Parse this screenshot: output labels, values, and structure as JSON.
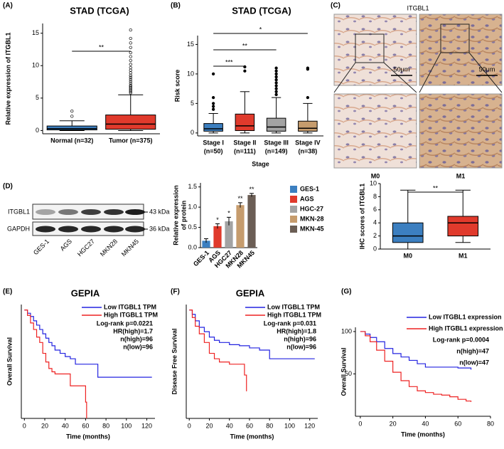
{
  "chart_data": [
    {
      "type": "box",
      "label": "(A)",
      "title": "STAD (TCGA)",
      "ylabel": "Relative expression of ITGBL1",
      "categories": [
        "Normal (n=32)",
        "Tumor (n=375)"
      ],
      "colors": [
        "#3c7fc0",
        "#e03a2c"
      ],
      "whisker_low": [
        0,
        0
      ],
      "q1": [
        0.1,
        0.2
      ],
      "median": [
        0.3,
        1.0
      ],
      "q3": [
        0.7,
        2.4
      ],
      "whisker_high": [
        1.5,
        5.5
      ],
      "outliers": [
        [
          2.2,
          3.0
        ],
        [
          5.8,
          6.0,
          6.2,
          6.4,
          6.6,
          6.8,
          7.0,
          7.3,
          7.6,
          7.9,
          8.2,
          8.5,
          8.9,
          9.3,
          9.7,
          10.2,
          10.8,
          11.4,
          12.0,
          12.8,
          13.5,
          14.2,
          15.5
        ]
      ],
      "significance": [
        {
          "pair": [
            0,
            1
          ],
          "text": "**"
        }
      ],
      "ylim": [
        -0.5,
        16.5
      ],
      "yticks": [
        0,
        5,
        10,
        15
      ]
    },
    {
      "type": "box",
      "label": "(B)",
      "title": "STAD (TCGA)",
      "ylabel": "Risk score",
      "xlabel": "Stage",
      "categories": [
        "Stage I",
        "Stage II",
        "Stage III",
        "Stage IV"
      ],
      "sublabels": [
        "(n=50)",
        "(n=111)",
        "(n=149)",
        "(n=38)"
      ],
      "colors": [
        "#3c7fc0",
        "#e03a2c",
        "#a3a3a3",
        "#c69c6d"
      ],
      "whisker_low": [
        0,
        0,
        0,
        0
      ],
      "q1": [
        0.3,
        0.4,
        0.3,
        0.3
      ],
      "median": [
        0.7,
        1.2,
        1.0,
        0.8
      ],
      "q3": [
        1.6,
        3.2,
        2.5,
        2.0
      ],
      "whisker_high": [
        3.3,
        7.0,
        6.0,
        5.0
      ],
      "outliers": [
        [
          4.0,
          4.5,
          5.0,
          6.0,
          10.0
        ],
        [
          10.5,
          11.2
        ],
        [
          6.5,
          7.0,
          7.5,
          8.0,
          8.5,
          9.0,
          9.5,
          10.0,
          10.5,
          11.0
        ],
        [
          6.0,
          10.8,
          11.0
        ]
      ],
      "significance": [
        {
          "pair": [
            0,
            3
          ],
          "text": "*"
        },
        {
          "pair": [
            0,
            2
          ],
          "text": "**"
        },
        {
          "pair": [
            0,
            1
          ],
          "text": "***"
        }
      ],
      "ylim": [
        -0.5,
        16.5
      ],
      "yticks": [
        0,
        5,
        10,
        15
      ]
    },
    {
      "type": "bar",
      "ylabel": [
        "Relative expression",
        "of protein"
      ],
      "categories": [
        "GES-1",
        "AGS",
        "HGC27",
        "MKN28",
        "MKN45"
      ],
      "legend": [
        "GES-1",
        "AGS",
        "HGC-27",
        "MKN-28",
        "MKN-45"
      ],
      "colors": [
        "#3c7fc0",
        "#e03a2c",
        "#a3a3a3",
        "#c69c6d",
        "#6b5e55"
      ],
      "values": [
        0.17,
        0.53,
        0.65,
        1.05,
        1.3
      ],
      "errors": [
        0.05,
        0.06,
        0.1,
        0.06,
        0.04
      ],
      "annotations": [
        null,
        "*",
        "*",
        "**",
        "**"
      ],
      "ylim": [
        0,
        1.6
      ],
      "yticks": [
        {
          "value": 0,
          "label": "0.0"
        },
        0.5,
        {
          "value": 1,
          "label": "1.0"
        },
        1.5
      ]
    },
    {
      "type": "box",
      "ylabel": "IHC scores of ITGBL1",
      "categories": [
        "M0",
        "M1"
      ],
      "colors": [
        "#3c7fc0",
        "#e03a2c"
      ],
      "whisker_low": [
        0,
        1
      ],
      "q1": [
        1,
        2
      ],
      "median": [
        2,
        4
      ],
      "q3": [
        4,
        5
      ],
      "whisker_high": [
        9,
        9
      ],
      "outliers": [
        [],
        []
      ],
      "significance": [
        {
          "pair": [
            0,
            1
          ],
          "text": "**"
        }
      ],
      "ylim": [
        0,
        10
      ],
      "yticks": [
        0,
        2,
        4,
        6,
        8,
        10
      ]
    },
    {
      "type": "line",
      "label": "(E)",
      "title": "GEPIA",
      "ylabel": "Overall Survival",
      "xlabel": "Time (months)",
      "series": [
        {
          "name": "Low ITGBL1 TPM",
          "color": "#2323e0",
          "x": [
            0,
            3,
            6,
            9,
            12,
            15,
            18,
            21,
            24,
            27,
            30,
            35,
            40,
            45,
            50,
            55,
            60,
            70,
            72,
            125
          ],
          "values": [
            1,
            0.97,
            0.94,
            0.9,
            0.86,
            0.82,
            0.78,
            0.74,
            0.7,
            0.67,
            0.63,
            0.6,
            0.57,
            0.55,
            0.5,
            0.5,
            0.5,
            0.5,
            0.38,
            0.38
          ]
        },
        {
          "name": "High ITGBL1 TPM",
          "color": "#ee2222",
          "x": [
            0,
            3,
            6,
            9,
            12,
            15,
            18,
            21,
            24,
            27,
            30,
            40,
            45,
            50,
            58,
            60,
            61
          ],
          "values": [
            1,
            0.95,
            0.88,
            0.82,
            0.75,
            0.7,
            0.6,
            0.52,
            0.46,
            0.43,
            0.41,
            0.41,
            0.3,
            0.3,
            0.3,
            0.15,
            0
          ]
        }
      ],
      "annotations": [
        "Log-rank p=0.0221",
        "HR(high)=1.7",
        "n(high)=96",
        "n(low)=96"
      ],
      "xlim": [
        -3,
        128
      ],
      "xticks": [
        0,
        20,
        40,
        60,
        80,
        100,
        120
      ],
      "ylim": [
        0,
        1.05
      ]
    },
    {
      "type": "line",
      "label": "(F)",
      "title": "GEPIA",
      "ylabel": "Disease Free Survival",
      "xlabel": "Time (months)",
      "series": [
        {
          "name": "Low ITGBL1 TPM",
          "color": "#2323e0",
          "x": [
            0,
            3,
            6,
            10,
            15,
            20,
            25,
            30,
            40,
            50,
            60,
            70,
            80,
            100,
            125
          ],
          "values": [
            1,
            0.96,
            0.9,
            0.84,
            0.8,
            0.75,
            0.72,
            0.7,
            0.68,
            0.67,
            0.65,
            0.63,
            0.55,
            0.55,
            0.55
          ]
        },
        {
          "name": "High ITGBL1 TPM",
          "color": "#ee2222",
          "x": [
            0,
            3,
            6,
            10,
            15,
            20,
            25,
            30,
            40,
            50,
            55,
            57
          ],
          "values": [
            1,
            0.93,
            0.85,
            0.78,
            0.7,
            0.6,
            0.55,
            0.52,
            0.5,
            0.5,
            0.4,
            0.25
          ]
        }
      ],
      "annotations": [
        "Log-rank p=0.031",
        "HR(high)=1.8",
        "n(high)=96",
        "n(low)=96"
      ],
      "xlim": [
        -3,
        128
      ],
      "xticks": [
        0,
        20,
        40,
        60,
        80,
        100,
        120
      ],
      "ylim": [
        0,
        1.05
      ]
    },
    {
      "type": "line",
      "label": "(G)",
      "ylabel": "Overall Survival",
      "xlabel": "Time (months)",
      "series": [
        {
          "name": "Low ITGBL1 expression",
          "color": "#2323e0",
          "x": [
            0,
            3,
            6,
            10,
            15,
            20,
            25,
            30,
            35,
            40,
            50,
            60,
            68
          ],
          "values": [
            100,
            97,
            93,
            88,
            80,
            74,
            70,
            66,
            62,
            58,
            58,
            57,
            55
          ]
        },
        {
          "name": "High ITGBL1 expression",
          "color": "#ee2222",
          "x": [
            0,
            3,
            6,
            10,
            15,
            20,
            25,
            30,
            35,
            40,
            45,
            50,
            55,
            60,
            65,
            68
          ],
          "values": [
            100,
            95,
            88,
            78,
            65,
            52,
            42,
            35,
            30,
            28,
            26,
            25,
            23,
            20,
            18,
            17
          ]
        }
      ],
      "annotations": [
        "Log-rank p=0.0004",
        "n(high)=47",
        "n(low)=47"
      ],
      "xlim": [
        -3,
        80
      ],
      "xticks": [
        0,
        20,
        40,
        60,
        80
      ],
      "ylim": [
        0,
        105
      ],
      "yticks": [
        50,
        100
      ]
    }
  ],
  "ihc": {
    "label": "(C)",
    "title": "ITGBL1",
    "scale_bars": [
      "50μm",
      "50μm"
    ],
    "groups": [
      "M0",
      "M1"
    ]
  },
  "blot": {
    "label": "(D)",
    "proteins": [
      "ITGBL1",
      "GAPDH"
    ],
    "sizes": [
      "43 kDa",
      "36 kDa"
    ],
    "lanes": [
      "GES-1",
      "AGS",
      "HGC27",
      "MKN28",
      "MKN45"
    ]
  }
}
